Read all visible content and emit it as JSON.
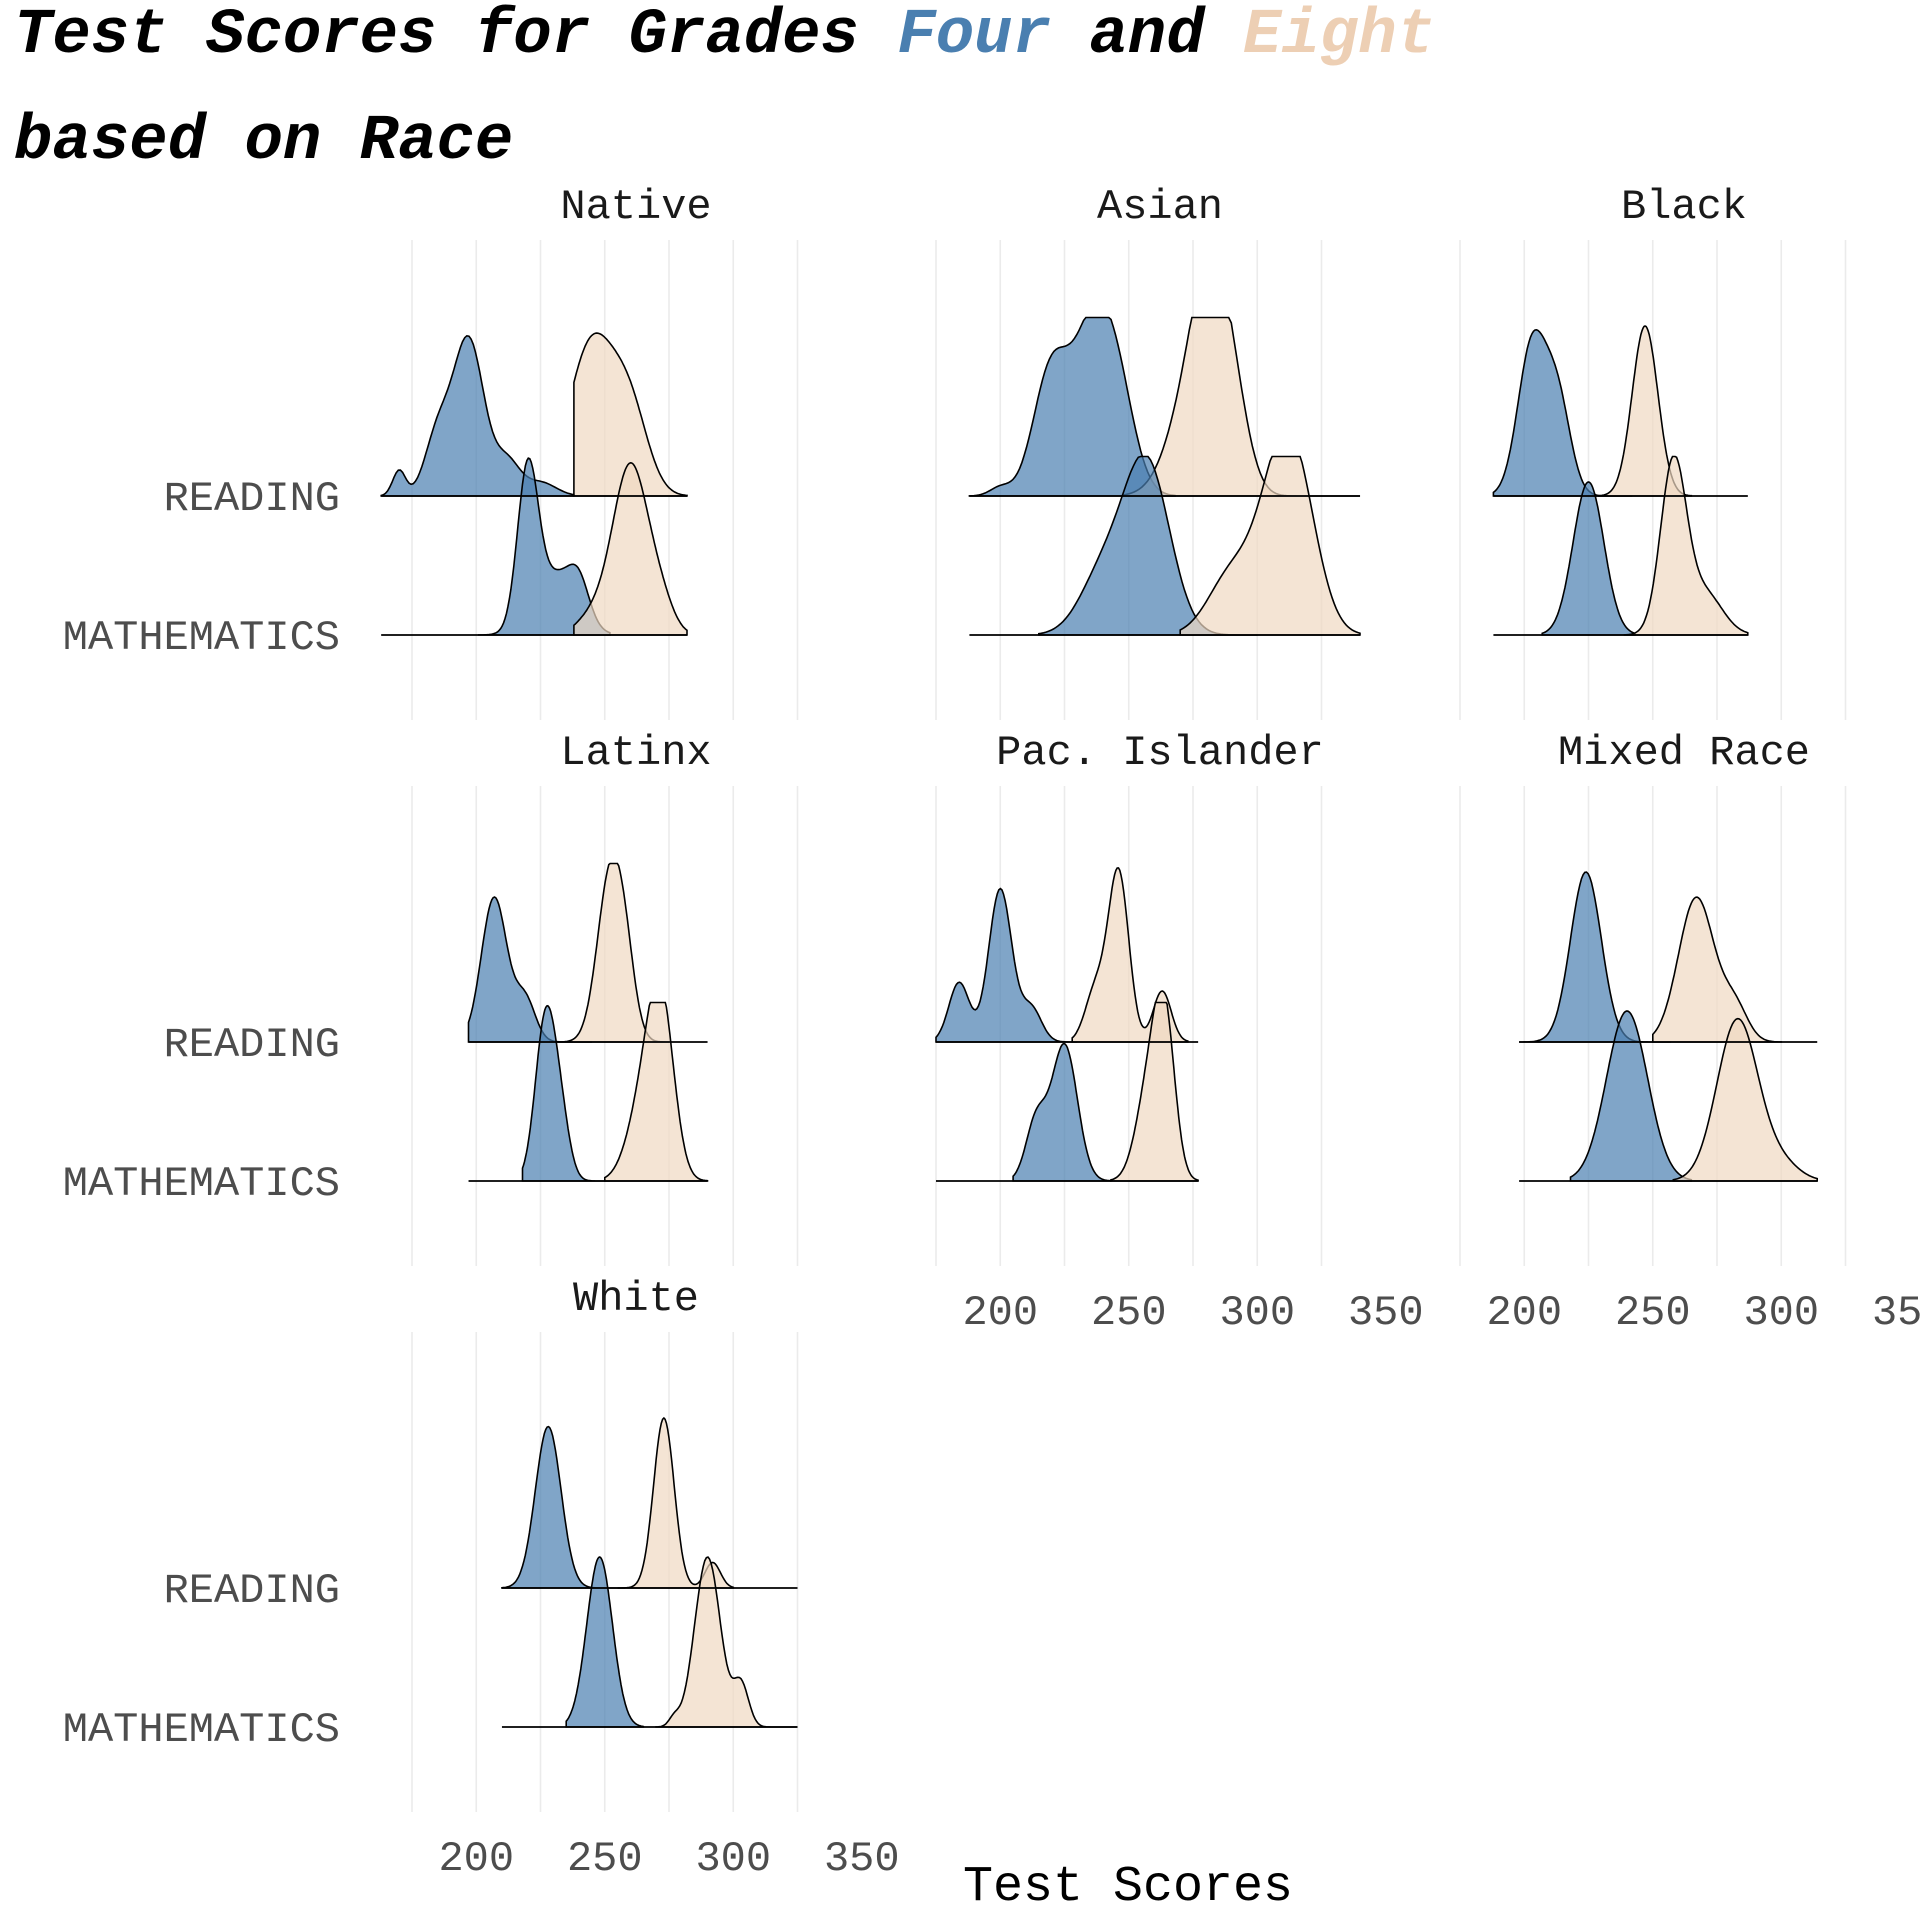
{
  "title": {
    "line1_before": "Test Scores for Grades ",
    "line1_four": "Four",
    "line1_and": " and ",
    "line1_eight": "Eight",
    "line2": "based on Race"
  },
  "colors": {
    "grade_four": "#4a7fb0",
    "grade_eight": "#f0d8c2",
    "four_title": "#4a7fb0",
    "eight_title": "#edcfb4"
  },
  "chart_data": {
    "type": "ridgeline density",
    "title": "Test Scores for Grades Four and Eight based on Race",
    "xlabel": "Test Scores",
    "ylabel": "",
    "x_ticks": [
      200,
      250,
      300,
      350
    ],
    "xlim": [
      175,
      380
    ],
    "grid": "vertical",
    "y_categories": [
      "READING",
      "MATHEMATICS"
    ],
    "series": [
      {
        "name": "Four",
        "color": "#4a7fb0"
      },
      {
        "name": "Eight",
        "color": "#f0d8c2"
      }
    ],
    "panels": [
      {
        "name": "Native",
        "ridges": [
          {
            "subject": "READING",
            "grade": "Four",
            "range": [
              163,
              238
            ],
            "peaks": [
              [
                170,
                0.15,
                2.5
              ],
              [
                185,
                0.35,
                5
              ],
              [
                197,
                0.92,
                6
              ],
              [
                212,
                0.2,
                5
              ],
              [
                225,
                0.08,
                6
              ]
            ]
          },
          {
            "subject": "READING",
            "grade": "Eight",
            "range": [
              238,
              282
            ],
            "peaks": [
              [
                245,
                0.9,
                9
              ],
              [
                260,
                0.45,
                7
              ]
            ]
          },
          {
            "subject": "MATHEMATICS",
            "grade": "Four",
            "range": [
              201,
              252
            ],
            "peaks": [
              [
                220,
                0.9,
                4
              ],
              [
                231,
                0.35,
                8
              ],
              [
                240,
                0.2,
                4
              ]
            ]
          },
          {
            "subject": "MATHEMATICS",
            "grade": "Eight",
            "range": [
              238,
              282
            ],
            "peaks": [
              [
                245,
                0.1,
                6
              ],
              [
                260,
                1.0,
                7
              ],
              [
                272,
                0.15,
                5
              ]
            ]
          }
        ]
      },
      {
        "name": "Asian",
        "ridges": [
          {
            "subject": "READING",
            "grade": "Four",
            "range": [
              188,
              268
            ],
            "peaks": [
              [
                200,
                0.05,
                4
              ],
              [
                220,
                0.75,
                7
              ],
              [
                235,
                0.8,
                7
              ],
              [
                245,
                0.65,
                7
              ]
            ]
          },
          {
            "subject": "READING",
            "grade": "Eight",
            "range": [
              248,
              340
            ],
            "peaks": [
              [
                275,
                0.6,
                9
              ],
              [
                283,
                0.95,
                7
              ],
              [
                292,
                0.3,
                6
              ]
            ]
          },
          {
            "subject": "MATHEMATICS",
            "grade": "Four",
            "range": [
              215,
              300
            ],
            "peaks": [
              [
                240,
                0.35,
                9
              ],
              [
                257,
                1.0,
                9
              ]
            ]
          },
          {
            "subject": "MATHEMATICS",
            "grade": "Eight",
            "range": [
              270,
              340
            ],
            "peaks": [
              [
                290,
                0.35,
                9
              ],
              [
                310,
                1.0,
                9
              ],
              [
                318,
                0.3,
                8
              ]
            ]
          }
        ]
      },
      {
        "name": "Black",
        "ridges": [
          {
            "subject": "READING",
            "grade": "Four",
            "range": [
              188,
              242
            ],
            "peaks": [
              [
                203,
                0.88,
                5.5
              ],
              [
                213,
                0.55,
                5
              ]
            ]
          },
          {
            "subject": "READING",
            "grade": "Eight",
            "range": [
              229,
              265
            ],
            "peaks": [
              [
                247,
                1.0,
                5
              ]
            ]
          },
          {
            "subject": "MATHEMATICS",
            "grade": "Four",
            "range": [
              207,
              243
            ],
            "peaks": [
              [
                225,
                0.9,
                6
              ]
            ]
          },
          {
            "subject": "MATHEMATICS",
            "grade": "Eight",
            "range": [
              239,
              287
            ],
            "peaks": [
              [
                258,
                1.0,
                5
              ],
              [
                270,
                0.25,
                7
              ]
            ]
          }
        ]
      },
      {
        "name": "Latinx",
        "ridges": [
          {
            "subject": "READING",
            "grade": "Four",
            "range": [
              197,
              245
            ],
            "peaks": [
              [
                207,
                0.85,
                5
              ],
              [
                219,
                0.25,
                4
              ]
            ]
          },
          {
            "subject": "READING",
            "grade": "Eight",
            "range": [
              232,
              275
            ],
            "peaks": [
              [
                252,
                0.95,
                5
              ],
              [
                258,
                0.35,
                4
              ]
            ]
          },
          {
            "subject": "MATHEMATICS",
            "grade": "Four",
            "range": [
              218,
              252
            ],
            "peaks": [
              [
                227,
                0.95,
                4
              ],
              [
                233,
                0.3,
                3.5
              ]
            ]
          },
          {
            "subject": "MATHEMATICS",
            "grade": "Eight",
            "range": [
              250,
              290
            ],
            "peaks": [
              [
                265,
                0.45,
                6
              ],
              [
                272,
                0.95,
                5
              ]
            ]
          }
        ]
      },
      {
        "name": "Pac. Islander",
        "ridges": [
          {
            "subject": "READING",
            "grade": "Four",
            "range": [
              175,
              230
            ],
            "peaks": [
              [
                184,
                0.35,
                4
              ],
              [
                200,
                0.9,
                4.5
              ],
              [
                212,
                0.2,
                4
              ]
            ]
          },
          {
            "subject": "READING",
            "grade": "Eight",
            "range": [
              228,
              273
            ],
            "peaks": [
              [
                237,
                0.3,
                4
              ],
              [
                246,
                1.0,
                4
              ],
              [
                263,
                0.3,
                3.5
              ]
            ]
          },
          {
            "subject": "MATHEMATICS",
            "grade": "Four",
            "range": [
              205,
              243
            ],
            "peaks": [
              [
                214,
                0.35,
                4
              ],
              [
                225,
                0.8,
                5
              ]
            ]
          },
          {
            "subject": "MATHEMATICS",
            "grade": "Eight",
            "range": [
              243,
              277
            ],
            "peaks": [
              [
                258,
                0.55,
                5
              ],
              [
                264,
                0.85,
                4
              ]
            ]
          }
        ]
      },
      {
        "name": "Mixed Race",
        "ridges": [
          {
            "subject": "READING",
            "grade": "Four",
            "range": [
              198,
              257
            ],
            "peaks": [
              [
                224,
                1.0,
                6
              ]
            ]
          },
          {
            "subject": "READING",
            "grade": "Eight",
            "range": [
              250,
              300
            ],
            "peaks": [
              [
                267,
                0.85,
                7
              ],
              [
                282,
                0.2,
                5
              ]
            ]
          },
          {
            "subject": "MATHEMATICS",
            "grade": "Four",
            "range": [
              218,
              265
            ],
            "peaks": [
              [
                240,
                1.0,
                8
              ]
            ]
          },
          {
            "subject": "MATHEMATICS",
            "grade": "Eight",
            "range": [
              258,
              314
            ],
            "peaks": [
              [
                283,
                0.95,
                8
              ],
              [
                300,
                0.1,
                7
              ]
            ]
          }
        ]
      },
      {
        "name": "White",
        "ridges": [
          {
            "subject": "READING",
            "grade": "Four",
            "range": [
              210,
              258
            ],
            "peaks": [
              [
                228,
                0.95,
                5
              ]
            ]
          },
          {
            "subject": "READING",
            "grade": "Eight",
            "range": [
              255,
              300
            ],
            "peaks": [
              [
                273,
                1.0,
                4
              ],
              [
                292,
                0.15,
                3
              ]
            ]
          },
          {
            "subject": "MATHEMATICS",
            "grade": "Four",
            "range": [
              235,
              265
            ],
            "peaks": [
              [
                248,
                1.0,
                5
              ]
            ]
          },
          {
            "subject": "MATHEMATICS",
            "grade": "Eight",
            "range": [
              270,
              325
            ],
            "peaks": [
              [
                277,
                0.05,
                2
              ],
              [
                290,
                1.0,
                5
              ],
              [
                303,
                0.25,
                3
              ]
            ]
          }
        ]
      }
    ]
  }
}
